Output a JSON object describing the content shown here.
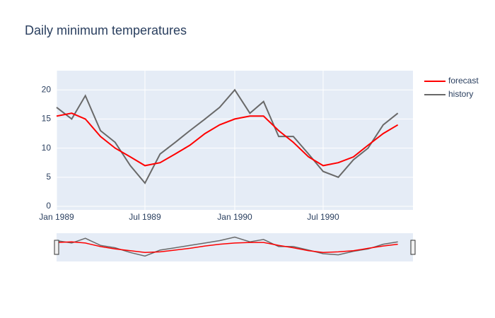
{
  "chart_data": {
    "type": "line",
    "title": "Daily minimum temperatures",
    "x": [
      "1989-01",
      "1989-02",
      "1989-03",
      "1989-04",
      "1989-05",
      "1989-06",
      "1989-07",
      "1989-08",
      "1989-09",
      "1989-10",
      "1989-11",
      "1989-12",
      "1990-01",
      "1990-02",
      "1990-03",
      "1990-04",
      "1990-05",
      "1990-06",
      "1990-07",
      "1990-08",
      "1990-09",
      "1990-10",
      "1990-11",
      "1990-12"
    ],
    "series": [
      {
        "name": "forecast",
        "color": "#ff0000",
        "values": [
          15.5,
          16,
          15,
          12,
          10,
          8.5,
          7,
          7.5,
          9,
          10.5,
          12.5,
          14,
          15,
          15.5,
          15.5,
          13,
          11,
          8.5,
          7,
          7.5,
          8.5,
          10.5,
          12.5,
          14
        ]
      },
      {
        "name": "history",
        "color": "#696969",
        "values": [
          17,
          15,
          19,
          13,
          11,
          7,
          4,
          9,
          11,
          13,
          15,
          17,
          20,
          16,
          18,
          12,
          12,
          9,
          6,
          5,
          8,
          10,
          14,
          16
        ]
      }
    ],
    "xlim": [
      "1989-01",
      "1991-01"
    ],
    "xticks": [
      {
        "value": "1989-01",
        "label": "Jan 1989"
      },
      {
        "value": "1989-07",
        "label": "Jul 1989"
      },
      {
        "value": "1990-01",
        "label": "Jan 1990"
      },
      {
        "value": "1990-07",
        "label": "Jul 1990"
      }
    ],
    "ylim": [
      -0.6,
      23.3
    ],
    "yticks": [
      0,
      5,
      10,
      15,
      20
    ],
    "grid": true,
    "legend": "right",
    "rangeslider": true
  }
}
